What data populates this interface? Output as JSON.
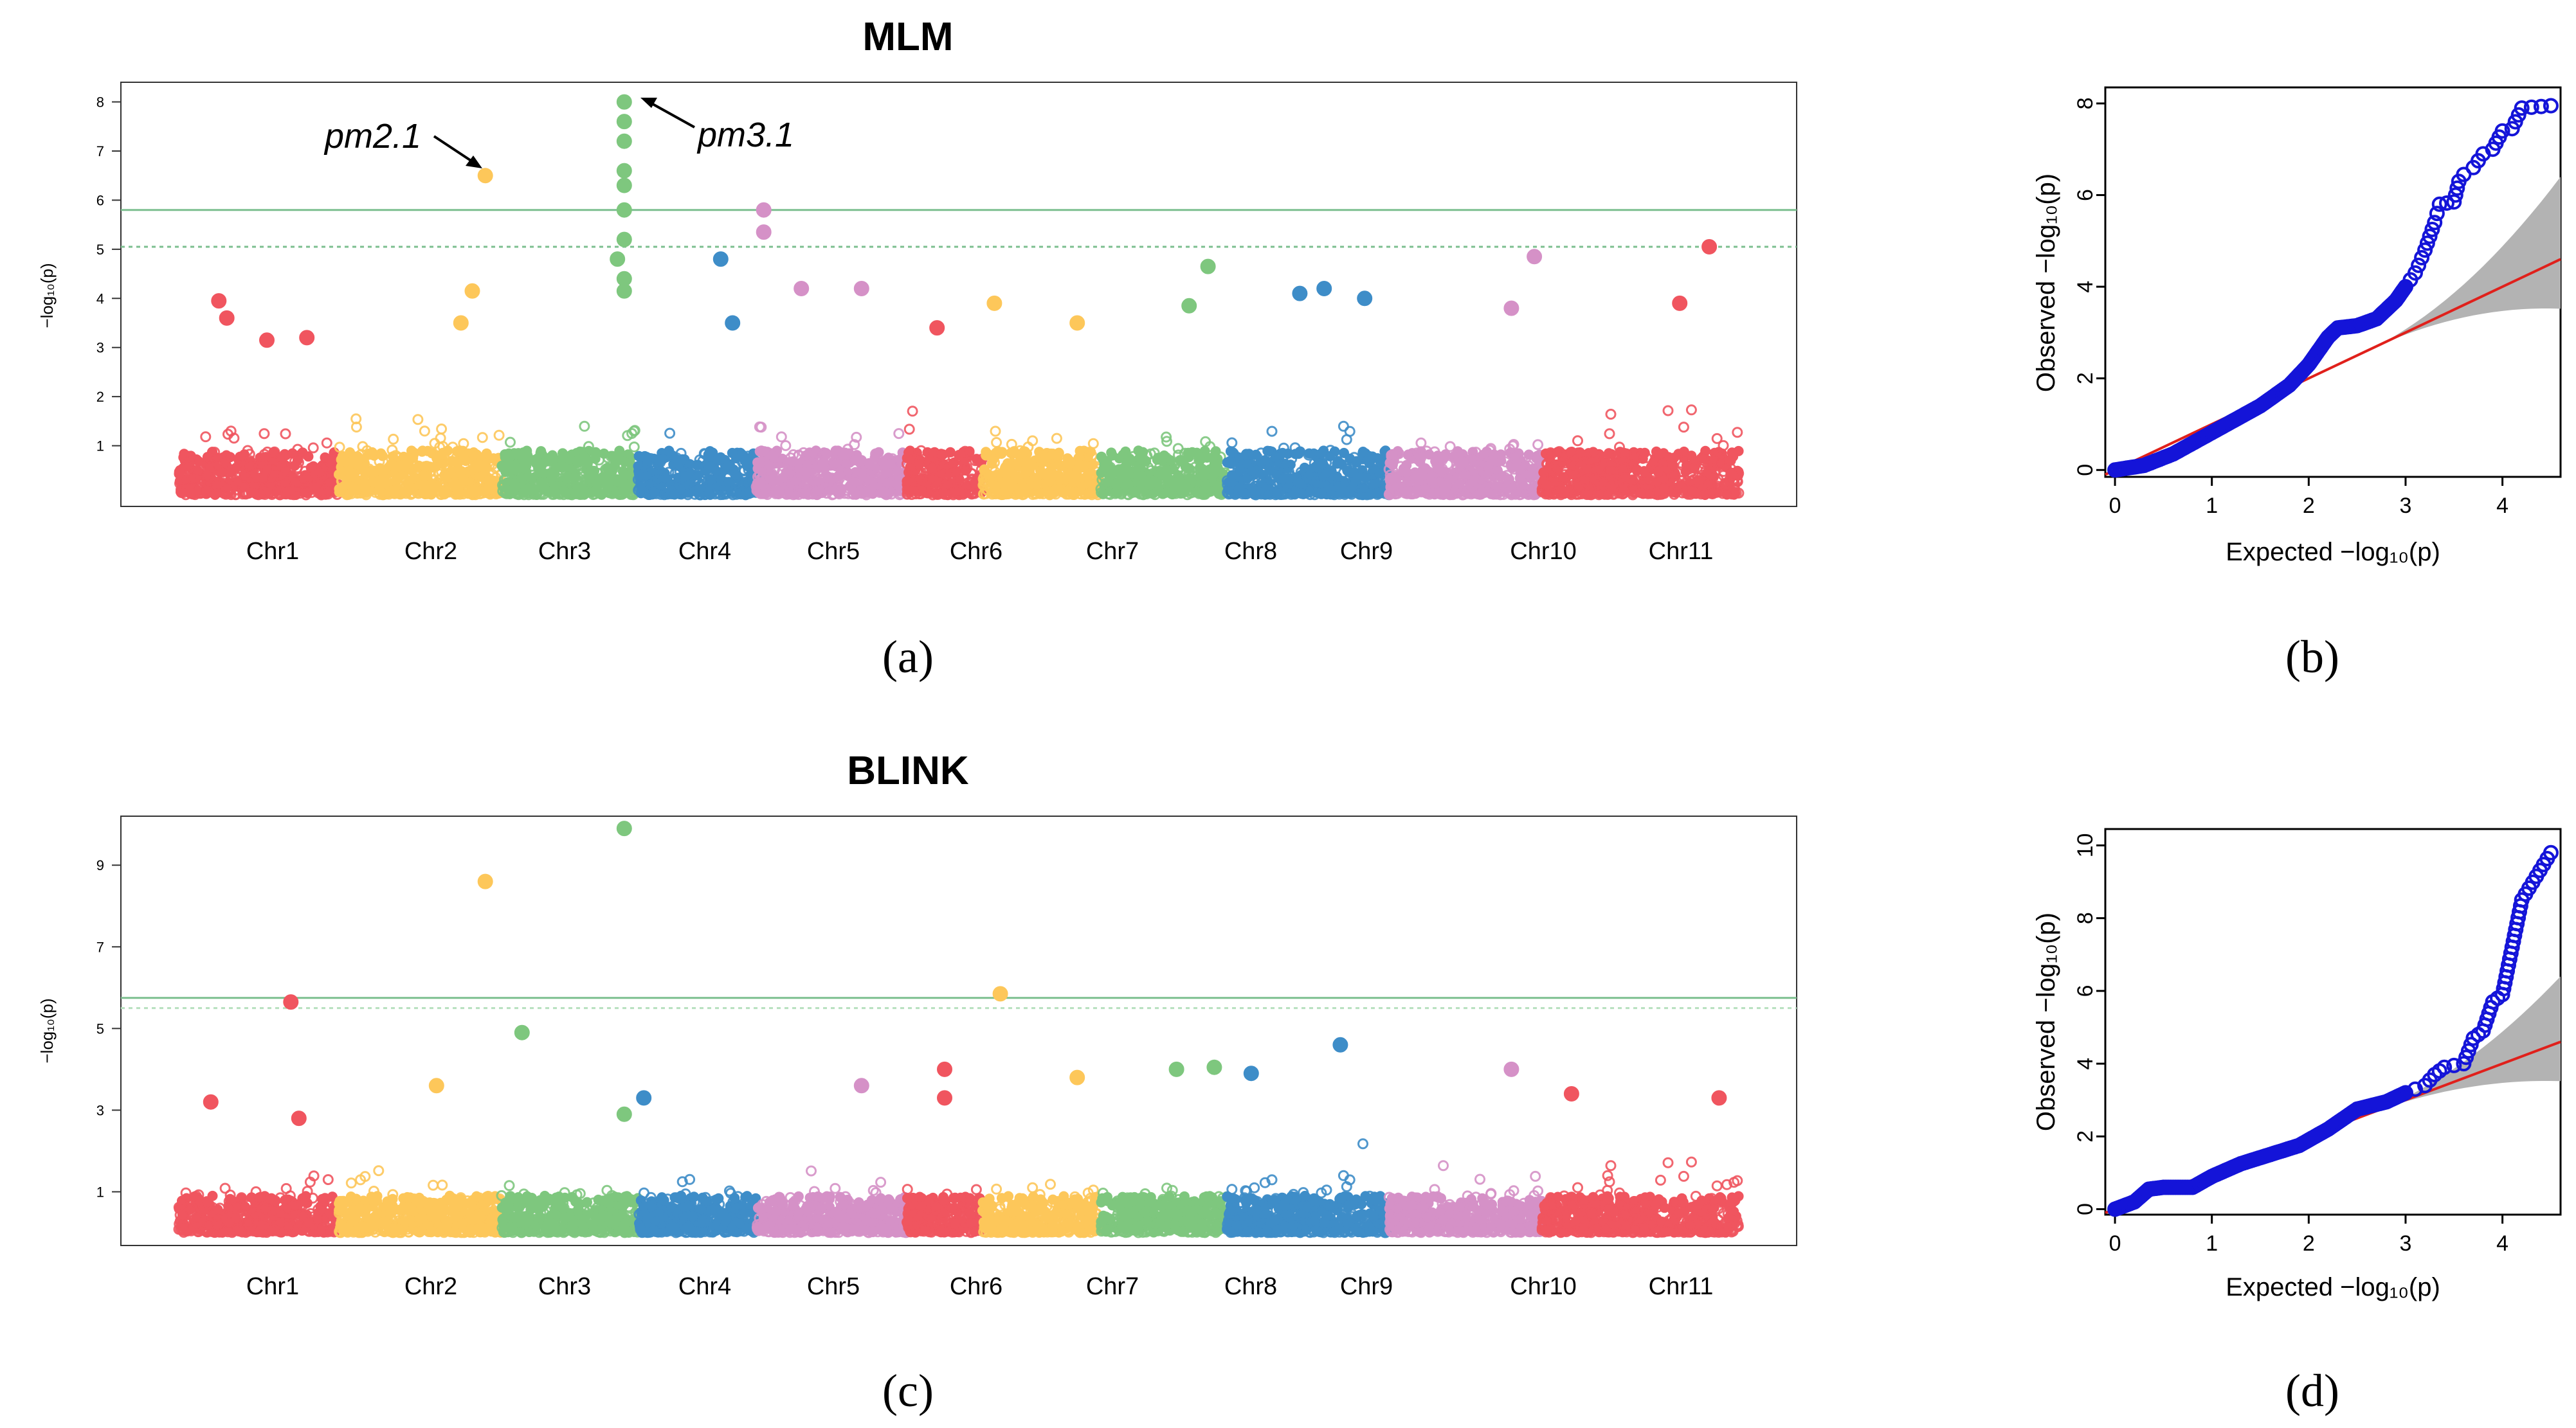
{
  "chart_data": [
    {
      "panel": "(a)",
      "type": "scatter",
      "subtype": "manhattan",
      "title": "MLM",
      "ylabel": "−log₁₀(p)",
      "yticks": [
        1,
        2,
        3,
        4,
        5,
        6,
        7,
        8
      ],
      "ylim": [
        0,
        8.4
      ],
      "chromosomes": [
        "Chr1",
        "Chr2",
        "Chr3",
        "Chr4",
        "Chr5",
        "Chr6",
        "Chr7",
        "Chr8",
        "Chr9",
        "Chr10",
        "Chr11"
      ],
      "colors": [
        "#F0555F",
        "#FDC75A",
        "#7EC77E",
        "#3E8DC8",
        "#D591C7",
        "#F0555F",
        "#FDC75A",
        "#7EC77E",
        "#3E8DC8",
        "#D591C7",
        "#F0555F"
      ],
      "thresholds": [
        {
          "value": 5.8,
          "style": "solid",
          "color": "#7CBF8F"
        },
        {
          "value": 5.05,
          "style": "dashed",
          "color": "#7CBF8F"
        }
      ],
      "annotations": [
        {
          "label": "pm2.1",
          "chr": "Chr2",
          "y": 6.5
        },
        {
          "label": "pm3.1",
          "chr": "Chr3",
          "y": 8.0
        }
      ],
      "peaks": [
        {
          "chr": "Chr1",
          "pos": 0.25,
          "y": 3.95
        },
        {
          "chr": "Chr1",
          "pos": 0.3,
          "y": 3.6
        },
        {
          "chr": "Chr1",
          "pos": 0.55,
          "y": 3.15
        },
        {
          "chr": "Chr1",
          "pos": 0.8,
          "y": 3.2
        },
        {
          "chr": "Chr2",
          "pos": 0.9,
          "y": 6.5
        },
        {
          "chr": "Chr2",
          "pos": 0.82,
          "y": 4.15
        },
        {
          "chr": "Chr2",
          "pos": 0.75,
          "y": 3.5
        },
        {
          "chr": "Chr3",
          "pos": 0.9,
          "y": 8.0
        },
        {
          "chr": "Chr3",
          "pos": 0.9,
          "y": 7.6
        },
        {
          "chr": "Chr3",
          "pos": 0.9,
          "y": 7.2
        },
        {
          "chr": "Chr3",
          "pos": 0.9,
          "y": 6.6
        },
        {
          "chr": "Chr3",
          "pos": 0.9,
          "y": 6.3
        },
        {
          "chr": "Chr3",
          "pos": 0.9,
          "y": 5.8
        },
        {
          "chr": "Chr3",
          "pos": 0.9,
          "y": 5.2
        },
        {
          "chr": "Chr3",
          "pos": 0.85,
          "y": 4.8
        },
        {
          "chr": "Chr3",
          "pos": 0.9,
          "y": 4.4
        },
        {
          "chr": "Chr3",
          "pos": 0.9,
          "y": 4.15
        },
        {
          "chr": "Chr4",
          "pos": 0.7,
          "y": 4.8
        },
        {
          "chr": "Chr4",
          "pos": 0.8,
          "y": 3.5
        },
        {
          "chr": "Chr5",
          "pos": 0.05,
          "y": 5.8
        },
        {
          "chr": "Chr5",
          "pos": 0.05,
          "y": 5.35
        },
        {
          "chr": "Chr5",
          "pos": 0.3,
          "y": 4.2
        },
        {
          "chr": "Chr5",
          "pos": 0.7,
          "y": 4.2
        },
        {
          "chr": "Chr6",
          "pos": 0.4,
          "y": 3.4
        },
        {
          "chr": "Chr7",
          "pos": 0.1,
          "y": 3.9
        },
        {
          "chr": "Chr7",
          "pos": 0.8,
          "y": 3.5
        },
        {
          "chr": "Chr8",
          "pos": 0.85,
          "y": 4.65
        },
        {
          "chr": "Chr8",
          "pos": 0.7,
          "y": 3.85
        },
        {
          "chr": "Chr9",
          "pos": 0.45,
          "y": 4.1
        },
        {
          "chr": "Chr9",
          "pos": 0.6,
          "y": 4.2
        },
        {
          "chr": "Chr9",
          "pos": 0.85,
          "y": 4.0
        },
        {
          "chr": "Chr10",
          "pos": 0.8,
          "y": 3.8
        },
        {
          "chr": "Chr10",
          "pos": 0.95,
          "y": 4.85
        },
        {
          "chr": "Chr11",
          "pos": 0.85,
          "y": 5.05
        },
        {
          "chr": "Chr11",
          "pos": 0.7,
          "y": 3.9
        }
      ]
    },
    {
      "panel": "(b)",
      "type": "scatter",
      "subtype": "qq",
      "xlabel": "Expected −log₁₀(p)",
      "ylabel": "Observed −log₁₀(p)",
      "xlim": [
        0,
        4.6
      ],
      "ylim": [
        0,
        8.2
      ],
      "xticks": [
        0,
        1,
        2,
        3,
        4
      ],
      "yticks": [
        0,
        2,
        4,
        6,
        8
      ],
      "points": [
        [
          0,
          0
        ],
        [
          0.3,
          0.1
        ],
        [
          0.6,
          0.35
        ],
        [
          0.9,
          0.7
        ],
        [
          1.2,
          1.05
        ],
        [
          1.5,
          1.4
        ],
        [
          1.8,
          1.85
        ],
        [
          2.0,
          2.3
        ],
        [
          2.1,
          2.6
        ],
        [
          2.2,
          2.9
        ],
        [
          2.3,
          3.1
        ],
        [
          2.5,
          3.15
        ],
        [
          2.7,
          3.3
        ],
        [
          2.9,
          3.7
        ],
        [
          3.0,
          4.0
        ],
        [
          3.1,
          4.3
        ],
        [
          3.2,
          4.8
        ],
        [
          3.25,
          5.1
        ],
        [
          3.3,
          5.4
        ],
        [
          3.35,
          5.8
        ],
        [
          3.5,
          5.85
        ],
        [
          3.55,
          6.3
        ],
        [
          3.6,
          6.45
        ],
        [
          3.7,
          6.6
        ],
        [
          3.8,
          6.9
        ],
        [
          3.9,
          7.0
        ],
        [
          4.0,
          7.4
        ],
        [
          4.1,
          7.45
        ],
        [
          4.2,
          7.9
        ],
        [
          4.5,
          7.95
        ]
      ]
    },
    {
      "panel": "(c)",
      "type": "scatter",
      "subtype": "manhattan",
      "title": "BLINK",
      "ylabel": "−log₁₀(p)",
      "yticks": [
        1,
        3,
        5,
        7,
        9
      ],
      "ylim": [
        0,
        10.2
      ],
      "chromosomes": [
        "Chr1",
        "Chr2",
        "Chr3",
        "Chr4",
        "Chr5",
        "Chr6",
        "Chr7",
        "Chr8",
        "Chr9",
        "Chr10",
        "Chr11"
      ],
      "colors": [
        "#F0555F",
        "#FDC75A",
        "#7EC77E",
        "#3E8DC8",
        "#D591C7",
        "#F0555F",
        "#FDC75A",
        "#7EC77E",
        "#3E8DC8",
        "#D591C7",
        "#F0555F"
      ],
      "thresholds": [
        {
          "value": 5.75,
          "style": "solid",
          "color": "#7CBF8F"
        },
        {
          "value": 5.5,
          "style": "dashed",
          "color": "#B7E0BF"
        }
      ],
      "peaks": [
        {
          "chr": "Chr1",
          "pos": 0.7,
          "y": 5.65
        },
        {
          "chr": "Chr1",
          "pos": 0.2,
          "y": 3.2
        },
        {
          "chr": "Chr1",
          "pos": 0.75,
          "y": 2.8
        },
        {
          "chr": "Chr2",
          "pos": 0.9,
          "y": 8.6
        },
        {
          "chr": "Chr2",
          "pos": 0.6,
          "y": 3.6
        },
        {
          "chr": "Chr3",
          "pos": 0.15,
          "y": 4.9
        },
        {
          "chr": "Chr3",
          "pos": 0.9,
          "y": 9.9
        },
        {
          "chr": "Chr3",
          "pos": 0.9,
          "y": 2.9
        },
        {
          "chr": "Chr4",
          "pos": 0.05,
          "y": 3.3
        },
        {
          "chr": "Chr5",
          "pos": 0.7,
          "y": 3.6
        },
        {
          "chr": "Chr6",
          "pos": 0.5,
          "y": 4.0
        },
        {
          "chr": "Chr6",
          "pos": 0.5,
          "y": 3.3
        },
        {
          "chr": "Chr7",
          "pos": 0.15,
          "y": 5.85
        },
        {
          "chr": "Chr7",
          "pos": 0.8,
          "y": 3.8
        },
        {
          "chr": "Chr8",
          "pos": 0.6,
          "y": 4.0
        },
        {
          "chr": "Chr8",
          "pos": 0.9,
          "y": 4.05
        },
        {
          "chr": "Chr9",
          "pos": 0.7,
          "y": 4.6
        },
        {
          "chr": "Chr9",
          "pos": 0.15,
          "y": 3.9
        },
        {
          "chr": "Chr10",
          "pos": 0.8,
          "y": 4.0
        },
        {
          "chr": "Chr11",
          "pos": 0.15,
          "y": 3.4
        },
        {
          "chr": "Chr11",
          "pos": 0.9,
          "y": 3.3
        }
      ]
    },
    {
      "panel": "(d)",
      "type": "scatter",
      "subtype": "qq",
      "xlabel": "Expected −log₁₀(p)",
      "ylabel": "Observed −log₁₀(p)",
      "xlim": [
        0,
        4.6
      ],
      "ylim": [
        0,
        10.3
      ],
      "xticks": [
        0,
        1,
        2,
        3,
        4
      ],
      "yticks": [
        0,
        2,
        4,
        6,
        8,
        10
      ],
      "points": [
        [
          0,
          0
        ],
        [
          0.2,
          0.2
        ],
        [
          0.35,
          0.55
        ],
        [
          0.5,
          0.6
        ],
        [
          0.8,
          0.6
        ],
        [
          1.0,
          0.9
        ],
        [
          1.3,
          1.25
        ],
        [
          1.6,
          1.5
        ],
        [
          1.9,
          1.75
        ],
        [
          2.2,
          2.2
        ],
        [
          2.5,
          2.75
        ],
        [
          2.8,
          2.95
        ],
        [
          3.0,
          3.2
        ],
        [
          3.2,
          3.4
        ],
        [
          3.3,
          3.7
        ],
        [
          3.4,
          3.9
        ],
        [
          3.6,
          4.0
        ],
        [
          3.7,
          4.7
        ],
        [
          3.8,
          4.9
        ],
        [
          3.9,
          5.7
        ],
        [
          4.0,
          5.9
        ],
        [
          4.2,
          8.5
        ],
        [
          4.5,
          9.8
        ]
      ]
    }
  ],
  "panels": {
    "a": "(a)",
    "b": "(b)",
    "c": "(c)",
    "d": "(d)"
  }
}
